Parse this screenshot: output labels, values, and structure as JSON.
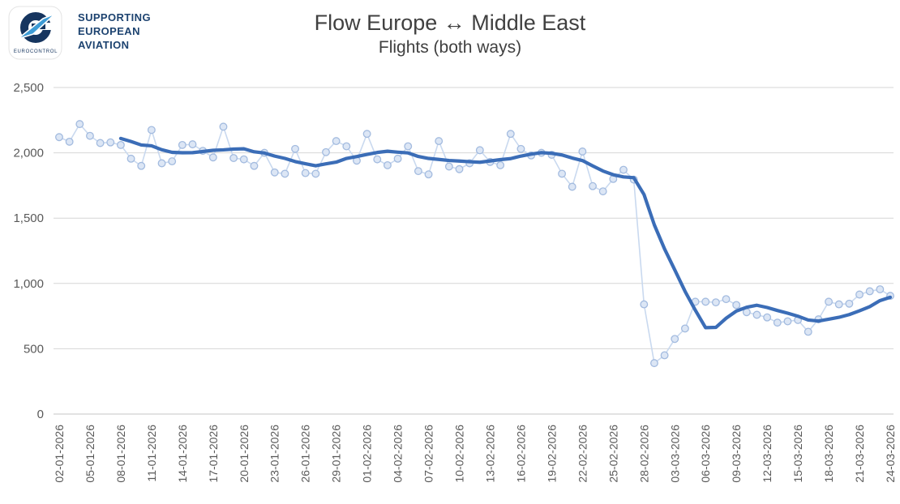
{
  "header": {
    "logo_label": "EUROCONTROL",
    "tagline": "SUPPORTING\nEUROPEAN\nAVIATION",
    "title": "Flow Europe ↔ Middle East",
    "subtitle": "Flights (both ways)"
  },
  "colors": {
    "daily_line": "#c9d9ef",
    "daily_marker_fill": "#dce6f5",
    "daily_marker_stroke": "#a3bbdf",
    "trend_line": "#3b6db7",
    "gridline": "#d6d6d6",
    "axis_text": "#595959",
    "logo_navy": "#16355f",
    "logo_blue": "#3d9bd5"
  },
  "chart_data": {
    "type": "line",
    "title": "Flow Europe ↔ Middle East",
    "subtitle": "Flights (both ways)",
    "xlabel": "",
    "ylabel": "",
    "ylim": [
      0,
      2500
    ],
    "yticks": [
      0,
      500,
      1000,
      1500,
      2000,
      2500
    ],
    "ytick_labels": [
      "0",
      "500",
      "1,000",
      "1,500",
      "2,000",
      "2,500"
    ],
    "xtick_every": 3,
    "grid": "horizontal",
    "legend": "none",
    "x": [
      "02-01-2026",
      "03-01-2026",
      "04-01-2026",
      "05-01-2026",
      "06-01-2026",
      "07-01-2026",
      "08-01-2026",
      "09-01-2026",
      "10-01-2026",
      "11-01-2026",
      "12-01-2026",
      "13-01-2026",
      "14-01-2026",
      "15-01-2026",
      "16-01-2026",
      "17-01-2026",
      "18-01-2026",
      "19-01-2026",
      "20-01-2026",
      "21-01-2026",
      "22-01-2026",
      "23-01-2026",
      "24-01-2026",
      "25-01-2026",
      "26-01-2026",
      "27-01-2026",
      "28-01-2026",
      "29-01-2026",
      "30-01-2026",
      "31-01-2026",
      "01-02-2026",
      "02-02-2026",
      "03-02-2026",
      "04-02-2026",
      "05-02-2026",
      "06-02-2026",
      "07-02-2026",
      "08-02-2026",
      "09-02-2026",
      "10-02-2026",
      "11-02-2026",
      "12-02-2026",
      "13-02-2026",
      "14-02-2026",
      "15-02-2026",
      "16-02-2026",
      "17-02-2026",
      "18-02-2026",
      "19-02-2026",
      "20-02-2026",
      "21-02-2026",
      "22-02-2026",
      "23-02-2026",
      "24-02-2026",
      "25-02-2026",
      "26-02-2026",
      "27-02-2026",
      "28-02-2026",
      "01-03-2026",
      "02-03-2026",
      "03-03-2026",
      "04-03-2026",
      "05-03-2026",
      "06-03-2026",
      "07-03-2026",
      "08-03-2026",
      "09-03-2026",
      "10-03-2026",
      "11-03-2026",
      "12-03-2026",
      "13-03-2026",
      "14-03-2026",
      "15-03-2026",
      "16-03-2026",
      "17-03-2026",
      "18-03-2026",
      "19-03-2026",
      "20-03-2026",
      "21-03-2026",
      "22-03-2026",
      "23-03-2026",
      "24-03-2026"
    ],
    "series": [
      {
        "name": "daily-flights",
        "style": "light-line-with-markers",
        "values": [
          2120,
          2085,
          2220,
          2130,
          2075,
          2080,
          2060,
          1955,
          1900,
          2175,
          1920,
          1935,
          2060,
          2065,
          2015,
          1965,
          2200,
          1960,
          1950,
          1900,
          2000,
          1850,
          1840,
          2030,
          1845,
          1840,
          2005,
          2090,
          2050,
          1940,
          2145,
          1950,
          1905,
          1955,
          2050,
          1860,
          1835,
          2090,
          1895,
          1875,
          1920,
          2020,
          1930,
          1905,
          2145,
          2030,
          1980,
          2000,
          1985,
          1840,
          1740,
          2010,
          1745,
          1705,
          1800,
          1870,
          1795,
          840,
          390,
          450,
          575,
          655,
          860,
          860,
          855,
          880,
          835,
          780,
          760,
          740,
          700,
          710,
          720,
          630,
          725,
          860,
          840,
          845,
          915,
          940,
          955,
          905
        ]
      },
      {
        "name": "7-day-moving-average",
        "style": "thick-dark-line",
        "derived_from": "daily-flights",
        "window": 7
      }
    ]
  }
}
